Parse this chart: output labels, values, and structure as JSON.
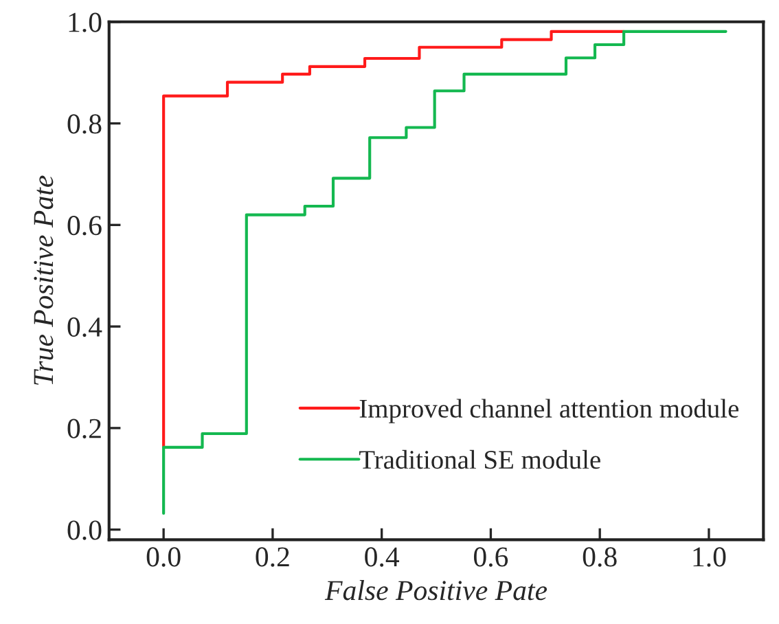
{
  "chart_data": {
    "type": "step",
    "xlabel": "False Positive Pate",
    "ylabel": "True Positive Pate",
    "xlim": [
      -0.1,
      1.1
    ],
    "ylim": [
      -0.02,
      1.0
    ],
    "xticks": [
      {
        "value": 0,
        "label": "0.0"
      },
      0.2,
      0.4,
      0.6,
      0.8,
      {
        "value": 1,
        "label": "1.0"
      }
    ],
    "yticks": [
      {
        "value": 0,
        "label": "0.0"
      },
      0.2,
      0.4,
      0.6,
      0.8,
      {
        "value": 1,
        "label": "1.0"
      }
    ],
    "grid": false,
    "legend": "bottom right",
    "marker": "none",
    "line_style": "solid",
    "series": [
      {
        "name": "Improved channel attention module",
        "color": "#ff1a1a",
        "x": [
          0,
          0,
          0.117,
          0.218,
          0.268,
          0.369,
          0.469,
          0.62,
          0.711,
          0.844
        ],
        "values": [
          0.162,
          0.854,
          0.881,
          0.897,
          0.912,
          0.928,
          0.95,
          0.965,
          0.981,
          0.981
        ]
      },
      {
        "name": "Traditional SE module",
        "color": "#14b850",
        "x": [
          0,
          0,
          0.071,
          0.152,
          0.259,
          0.311,
          0.378,
          0.445,
          0.497,
          0.551,
          0.738,
          0.791,
          0.844,
          1.031
        ],
        "values": [
          0.032,
          0.162,
          0.189,
          0.62,
          0.637,
          0.692,
          0.772,
          0.792,
          0.864,
          0.897,
          0.929,
          0.955,
          0.981,
          0.981
        ]
      }
    ]
  }
}
